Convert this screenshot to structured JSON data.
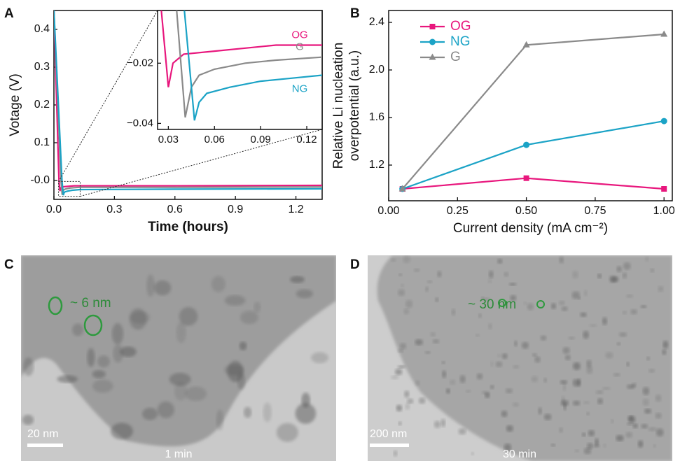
{
  "chart_data": [
    {
      "type": "line",
      "panel_label": "A",
      "ylabel": "Votage (V)",
      "xlabel": "Time (hours)",
      "xlim": [
        0,
        1.33
      ],
      "ylim": [
        -0.05,
        0.45
      ],
      "xticks": [
        {
          "value": 0,
          "label": "0.0"
        },
        0.3,
        0.6,
        0.9,
        1.2
      ],
      "yticks": [
        {
          "value": 0,
          "label": "-0.0"
        },
        0.1,
        0.2,
        0.3,
        0.4
      ],
      "series": [
        {
          "name": "OG",
          "color": "#e8177d",
          "x": [
            0,
            0.025,
            0.03,
            0.033,
            0.04,
            0.06,
            0.08,
            0.1,
            0.13,
            0.6,
            1.33
          ],
          "values": [
            0.45,
            0.0,
            -0.028,
            -0.02,
            -0.017,
            -0.016,
            -0.015,
            -0.014,
            -0.014,
            -0.014,
            -0.013
          ]
        },
        {
          "name": "G",
          "color": "#8a8a8a",
          "x": [
            0,
            0.035,
            0.041,
            0.045,
            0.05,
            0.06,
            0.08,
            0.1,
            0.13,
            0.6,
            1.33
          ],
          "values": [
            0.45,
            0.0,
            -0.038,
            -0.028,
            -0.024,
            -0.022,
            -0.02,
            -0.019,
            -0.018,
            -0.018,
            -0.017
          ]
        },
        {
          "name": "NG",
          "color": "#1ba3c6",
          "x": [
            0,
            0.04,
            0.047,
            0.05,
            0.055,
            0.07,
            0.09,
            0.11,
            0.13,
            0.6,
            1.33
          ],
          "values": [
            0.45,
            0.0,
            -0.039,
            -0.033,
            -0.03,
            -0.028,
            -0.026,
            -0.025,
            -0.024,
            -0.023,
            -0.022
          ]
        }
      ],
      "inset": {
        "xlim": [
          0.023,
          0.13
        ],
        "ylim": [
          -0.042,
          -0.0025
        ],
        "xticks": [
          0.03,
          0.06,
          0.09,
          0.12
        ],
        "yticks": [
          {
            "value": -0.04,
            "label": "−0.04"
          },
          {
            "value": -0.02,
            "label": "−0.02"
          }
        ]
      }
    },
    {
      "type": "line",
      "panel_label": "B",
      "ylabel": [
        "Relative Li nucleation",
        "overpotential (a.u.)"
      ],
      "xlabel": "Current density (mA cm⁻²)",
      "x": [
        0.05,
        0.5,
        1.0
      ],
      "xlim": [
        0,
        1.03
      ],
      "ylim": [
        0.9,
        2.5
      ],
      "xticks": [
        {
          "value": 0,
          "label": "0.00"
        },
        0.25,
        {
          "value": 0.5,
          "label": "0.50"
        },
        0.75,
        {
          "value": 1,
          "label": "1.00"
        }
      ],
      "yticks": [
        1.2,
        1.6,
        {
          "value": 2,
          "label": "2.0"
        },
        2.4
      ],
      "legend": "upper left",
      "series": [
        {
          "name": "OG",
          "color": "#e8177d",
          "marker": "square",
          "values": [
            1.0,
            1.09,
            1.0
          ]
        },
        {
          "name": "NG",
          "color": "#1ba3c6",
          "marker": "circle",
          "values": [
            1.0,
            1.37,
            1.57
          ]
        },
        {
          "name": "G",
          "color": "#8a8a8a",
          "marker": "triangle",
          "values": [
            1.0,
            2.21,
            2.3
          ]
        }
      ]
    }
  ],
  "images": [
    {
      "panel_label": "C",
      "annotation": "~ 6 nm",
      "scale_bar": "20 nm",
      "caption": "1 min"
    },
    {
      "panel_label": "D",
      "annotation": "~ 30 nm",
      "scale_bar": "200 nm",
      "caption": "30 min"
    }
  ]
}
